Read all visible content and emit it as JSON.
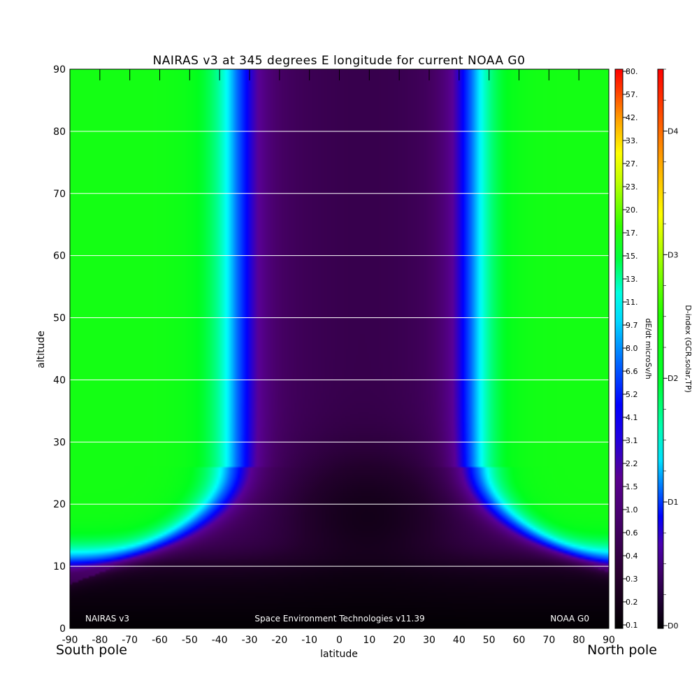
{
  "chart_data": {
    "type": "heatmap",
    "title": "NAIRAS v3 at 345 degrees E longitude for current NOAA G0",
    "xlabel": "latitude",
    "ylabel": "altitude",
    "xlim": [
      -90,
      90
    ],
    "ylim": [
      0,
      90
    ],
    "x_ticks": [
      "-90",
      "-80",
      "-70",
      "-60",
      "-50",
      "-40",
      "-30",
      "-20",
      "-10",
      "0",
      "10",
      "20",
      "30",
      "40",
      "50",
      "60",
      "70",
      "80",
      "90"
    ],
    "y_ticks": [
      "0",
      "10",
      "20",
      "30",
      "40",
      "50",
      "60",
      "70",
      "80",
      "90"
    ],
    "grid_y": [
      10,
      20,
      30,
      40,
      50,
      60,
      70,
      80
    ],
    "pole_labels": {
      "south": "South pole",
      "north": "North pole"
    },
    "annotations": {
      "left": "NAIRAS v3",
      "center": "Space Environment Technologies v11.39",
      "right": "NOAA G0"
    },
    "dose_colorbar": {
      "label": "dE/dt microSv/h",
      "ticks": [
        "0.1",
        "0.2",
        "0.3",
        "0.4",
        "0.6",
        "1.0",
        "1.5",
        "2.2",
        "3.1",
        "4.1",
        "5.2",
        "6.6",
        "8.0",
        "9.7",
        "11.",
        "13.",
        "15.",
        "17.",
        "20.",
        "23.",
        "27.",
        "33.",
        "42.",
        "57.",
        "80."
      ]
    },
    "dindex_colorbar": {
      "label": "D-index (GCR,solar,TP)",
      "ticks": [
        "D0",
        "D1",
        "D2",
        "D3",
        "D4"
      ],
      "tick_levels": [
        0,
        1,
        2,
        3,
        4
      ],
      "max_level": 4.5
    },
    "colorscale": [
      "#000000",
      "#400050",
      "#5a0090",
      "#0000ff",
      "#00ffff",
      "#00ff00",
      "#ffff00",
      "#ff8000",
      "#ff0000"
    ],
    "field_model": {
      "cutoff_boundary_latitudes": [
        -34,
        44
      ],
      "cutoff_boundary_altitudes_deg": {
        "south_cusp": 20,
        "north_cusp": 22
      },
      "note_levels_band_peak_microSv_per_h": 1.0,
      "polar_plateau_microSv_per_h": 13,
      "equatorial_minimum_microSv_per_h": 0.3,
      "sea_level_microSv_per_h": 0.1
    }
  }
}
